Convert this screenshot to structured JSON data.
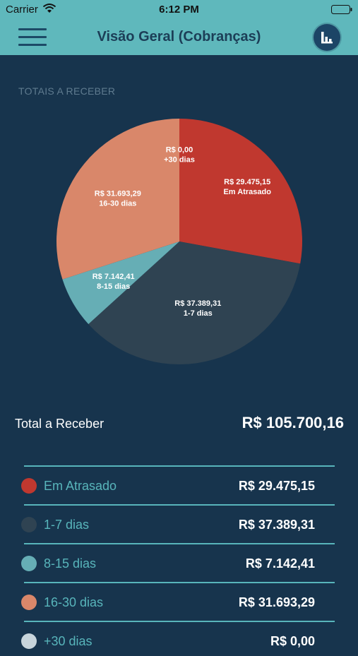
{
  "status": {
    "carrier": "Carrier",
    "time": "6:12 PM"
  },
  "header": {
    "title": "Visão Geral (Cobranças)",
    "menu_icon": "hamburger-icon",
    "chart_icon": "bar-chart-icon"
  },
  "section": {
    "title": "TOTAIS A RECEBER"
  },
  "chart_data": {
    "type": "pie",
    "title": "",
    "slices": [
      {
        "label": "Em Atrasado",
        "value": 29475.15,
        "value_label": "R$ 29.475,15",
        "color": "#c0382f"
      },
      {
        "label": "1-7 dias",
        "value": 37389.31,
        "value_label": "R$ 37.389,31",
        "color": "#2f4352"
      },
      {
        "label": "8-15 dias",
        "value": 7142.41,
        "value_label": "R$ 7.142,41",
        "color": "#66aeb5"
      },
      {
        "label": "16-30 dias",
        "value": 31693.29,
        "value_label": "R$ 31.693,29",
        "color": "#d9876a"
      },
      {
        "label": "+30 dias",
        "value": 0.0,
        "value_label": "R$ 0,00",
        "color": "#c8d5dc"
      }
    ]
  },
  "total": {
    "label": "Total a Receber",
    "value": "R$ 105.700,16"
  },
  "legend": [
    {
      "label": "Em Atrasado",
      "value": "R$ 29.475,15",
      "color": "#c0382f"
    },
    {
      "label": "1-7 dias",
      "value": "R$ 37.389,31",
      "color": "#2f4352"
    },
    {
      "label": "8-15 dias",
      "value": "R$ 7.142,41",
      "color": "#66aeb5"
    },
    {
      "label": "16-30 dias",
      "value": "R$ 31.693,29",
      "color": "#d9876a"
    },
    {
      "label": "+30 dias",
      "value": "R$ 0,00",
      "color": "#c8d5dc"
    }
  ]
}
